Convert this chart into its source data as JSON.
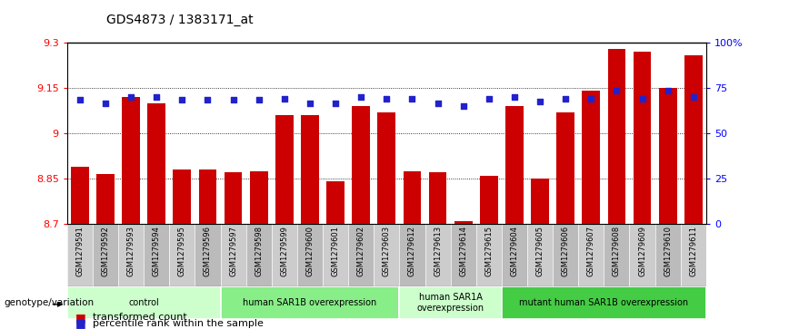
{
  "title": "GDS4873 / 1383171_at",
  "samples": [
    "GSM1279591",
    "GSM1279592",
    "GSM1279593",
    "GSM1279594",
    "GSM1279595",
    "GSM1279596",
    "GSM1279597",
    "GSM1279598",
    "GSM1279599",
    "GSM1279600",
    "GSM1279601",
    "GSM1279602",
    "GSM1279603",
    "GSM1279612",
    "GSM1279613",
    "GSM1279614",
    "GSM1279615",
    "GSM1279604",
    "GSM1279605",
    "GSM1279606",
    "GSM1279607",
    "GSM1279608",
    "GSM1279609",
    "GSM1279610",
    "GSM1279611"
  ],
  "bar_values": [
    8.89,
    8.865,
    9.12,
    9.1,
    8.88,
    8.88,
    8.87,
    8.875,
    9.06,
    9.06,
    8.84,
    9.09,
    9.07,
    8.875,
    8.87,
    8.71,
    8.86,
    9.09,
    8.85,
    9.07,
    9.14,
    9.28,
    9.27,
    9.15,
    9.26
  ],
  "percentile_values": [
    9.11,
    9.1,
    9.12,
    9.12,
    9.11,
    9.11,
    9.11,
    9.11,
    9.115,
    9.1,
    9.1,
    9.12,
    9.115,
    9.115,
    9.1,
    9.09,
    9.115,
    9.12,
    9.105,
    9.115,
    9.115,
    9.14,
    9.115,
    9.14,
    9.12
  ],
  "ymin": 8.7,
  "ymax": 9.3,
  "yticks": [
    8.7,
    8.85,
    9.0,
    9.15,
    9.3
  ],
  "ytick_labels": [
    "8.7",
    "8.85",
    "9",
    "9.15",
    "9.3"
  ],
  "right_ytick_positions": [
    8.7,
    8.85,
    9.0,
    9.15,
    9.3
  ],
  "right_ytick_labels": [
    "0",
    "25",
    "50",
    "75",
    "100%"
  ],
  "bar_color": "#cc0000",
  "dot_color": "#2222cc",
  "groups": [
    {
      "label": "control",
      "start": 0,
      "end": 6,
      "color": "#ccffcc"
    },
    {
      "label": "human SAR1B overexpression",
      "start": 6,
      "end": 13,
      "color": "#88ee88"
    },
    {
      "label": "human SAR1A\noverexpression",
      "start": 13,
      "end": 17,
      "color": "#ccffcc"
    },
    {
      "label": "mutant human SAR1B overexpression",
      "start": 17,
      "end": 25,
      "color": "#44cc44"
    }
  ],
  "xlabel_row_label": "genotype/variation",
  "legend_items": [
    {
      "label": "transformed count",
      "color": "#cc0000"
    },
    {
      "label": "percentile rank within the sample",
      "color": "#2222cc"
    }
  ]
}
